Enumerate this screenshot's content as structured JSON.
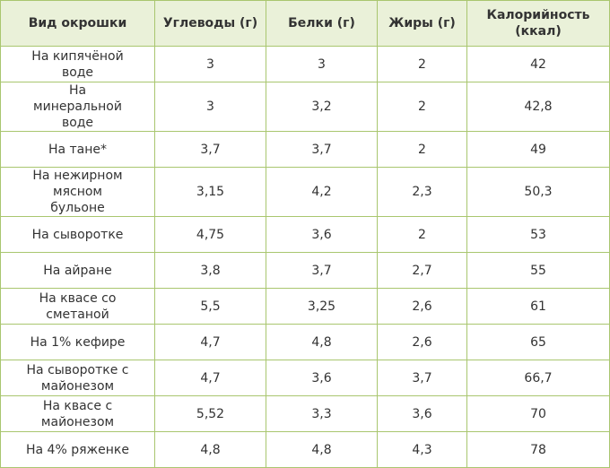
{
  "table": {
    "header": [
      "Вид окрошки",
      "Углеводы (г)",
      "Белки (г)",
      "Жиры (г)",
      "Калорийность (ккал)"
    ],
    "rows": [
      [
        "На кипячёной воде",
        "3",
        "3",
        "2",
        "42"
      ],
      [
        "На минеральной воде",
        "3",
        "3,2",
        "2",
        "42,8"
      ],
      [
        "На тане*",
        "3,7",
        "3,7",
        "2",
        "49"
      ],
      [
        "На нежирном мясном бульоне",
        "3,15",
        "4,2",
        "2,3",
        "50,3"
      ],
      [
        "На сыворотке",
        "4,75",
        "3,6",
        "2",
        "53"
      ],
      [
        "На айране",
        "3,8",
        "3,7",
        "2,7",
        "55"
      ],
      [
        "На квасе со сметаной",
        "5,5",
        "3,25",
        "2,6",
        "61"
      ],
      [
        "На 1% кефире",
        "4,7",
        "4,8",
        "2,6",
        "65"
      ],
      [
        "На сыворотке с майонезом",
        "4,7",
        "3,6",
        "3,7",
        "66,7"
      ],
      [
        "На квасе с майонезом",
        "5,52",
        "3,3",
        "3,6",
        "70"
      ],
      [
        "На 4% ряженке",
        "4,8",
        "4,8",
        "4,3",
        "78"
      ]
    ]
  }
}
